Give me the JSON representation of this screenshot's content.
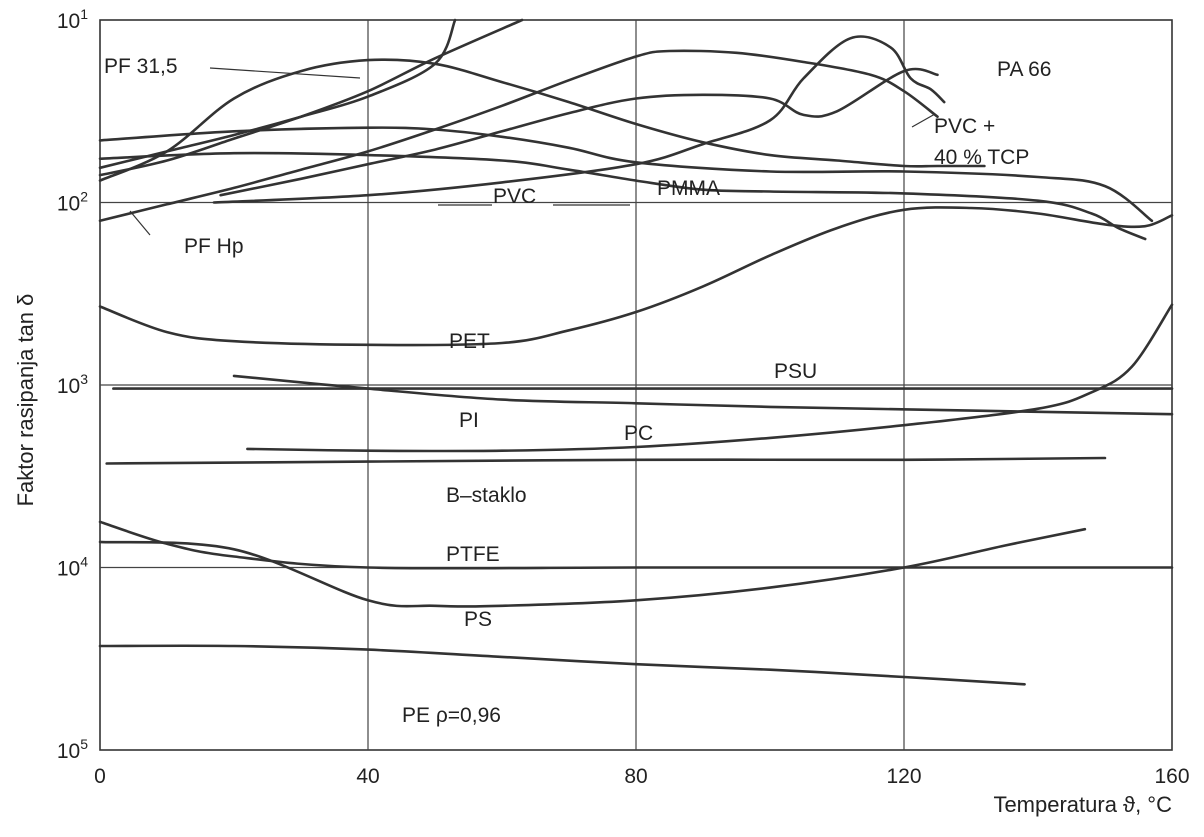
{
  "chart_data": {
    "type": "line",
    "ylabel": "Faktor rasipanja tan δ",
    "xlabel": "Temperatura ϑ, °C",
    "xlim": [
      0,
      160
    ],
    "x_ticks": [
      0,
      40,
      80,
      120,
      160
    ],
    "y_scale": "log",
    "ylim_exponent": [
      -5,
      -1
    ],
    "y_ticks": [
      {
        "base": "10",
        "exp": "1"
      },
      {
        "base": "10",
        "exp": "2"
      },
      {
        "base": "10",
        "exp": "3"
      },
      {
        "base": "10",
        "exp": "4"
      },
      {
        "base": "10",
        "exp": "5"
      }
    ],
    "grid": true,
    "series": [
      {
        "name": "PA 66",
        "points": [
          [
            0,
            -1.88
          ],
          [
            10,
            -1.72
          ],
          [
            20,
            -1.43
          ],
          [
            30,
            -1.28
          ],
          [
            40,
            -1.22
          ],
          [
            50,
            -1.24
          ],
          [
            60,
            -1.34
          ],
          [
            70,
            -1.45
          ],
          [
            80,
            -1.57
          ],
          [
            90,
            -1.67
          ],
          [
            100,
            -1.74
          ],
          [
            110,
            -1.77
          ],
          [
            120,
            -1.8
          ],
          [
            125,
            -1.8
          ],
          [
            132,
            -1.8
          ]
        ]
      },
      {
        "name": "PF 31,5",
        "points": [
          [
            0,
            -1.81
          ],
          [
            10,
            -1.72
          ],
          [
            20,
            -1.63
          ],
          [
            30,
            -1.53
          ],
          [
            40,
            -1.42
          ],
          [
            50,
            -1.24
          ],
          [
            53,
            -1.0
          ]
        ]
      },
      {
        "name": "",
        "points": [
          [
            0,
            -1.85
          ],
          [
            10,
            -1.77
          ],
          [
            20,
            -1.65
          ],
          [
            30,
            -1.53
          ],
          [
            40,
            -1.39
          ],
          [
            50,
            -1.21
          ],
          [
            63,
            -1.0
          ]
        ]
      },
      {
        "name": "",
        "points": [
          [
            0,
            -1.66
          ],
          [
            20,
            -1.61
          ],
          [
            40,
            -1.59
          ],
          [
            50,
            -1.6
          ],
          [
            60,
            -1.64
          ],
          [
            70,
            -1.7
          ],
          [
            80,
            -1.78
          ],
          [
            100,
            -1.83
          ],
          [
            120,
            -1.83
          ],
          [
            140,
            -1.86
          ],
          [
            150,
            -1.91
          ],
          [
            157,
            -2.1
          ]
        ]
      },
      {
        "name": "PF Hp",
        "points": [
          [
            0,
            -2.1
          ],
          [
            10,
            -2.01
          ],
          [
            20,
            -1.92
          ],
          [
            30,
            -1.82
          ],
          [
            40,
            -1.72
          ],
          [
            50,
            -1.6
          ],
          [
            60,
            -1.47
          ],
          [
            70,
            -1.33
          ],
          [
            80,
            -1.2
          ],
          [
            85,
            -1.17
          ],
          [
            95,
            -1.18
          ],
          [
            105,
            -1.23
          ],
          [
            115,
            -1.3
          ],
          [
            120,
            -1.39
          ],
          [
            125,
            -1.53
          ]
        ]
      },
      {
        "name": "PVC + 40 % TCP",
        "points": [
          [
            18,
            -1.96
          ],
          [
            30,
            -1.87
          ],
          [
            40,
            -1.79
          ],
          [
            50,
            -1.71
          ],
          [
            60,
            -1.61
          ],
          [
            70,
            -1.51
          ],
          [
            80,
            -1.43
          ],
          [
            90,
            -1.41
          ],
          [
            100,
            -1.43
          ],
          [
            105,
            -1.52
          ],
          [
            110,
            -1.5
          ],
          [
            120,
            -1.28
          ],
          [
            125,
            -1.3
          ]
        ]
      },
      {
        "name": "PVC",
        "points": [
          [
            17,
            -2.0
          ],
          [
            40,
            -1.96
          ],
          [
            60,
            -1.89
          ],
          [
            80,
            -1.79
          ],
          [
            90,
            -1.68
          ],
          [
            100,
            -1.55
          ],
          [
            105,
            -1.32
          ],
          [
            112,
            -1.1
          ],
          [
            118,
            -1.15
          ],
          [
            121,
            -1.32
          ],
          [
            124,
            -1.38
          ],
          [
            126,
            -1.45
          ]
        ]
      },
      {
        "name": "PMMA",
        "points": [
          [
            0,
            -1.76
          ],
          [
            20,
            -1.73
          ],
          [
            40,
            -1.74
          ],
          [
            60,
            -1.77
          ],
          [
            70,
            -1.82
          ],
          [
            80,
            -1.88
          ],
          [
            90,
            -1.93
          ],
          [
            100,
            -1.94
          ],
          [
            120,
            -1.95
          ],
          [
            140,
            -1.99
          ],
          [
            148,
            -2.06
          ],
          [
            152,
            -2.14
          ],
          [
            156,
            -2.2
          ]
        ]
      },
      {
        "name": "PET",
        "points": [
          [
            0,
            -2.57
          ],
          [
            10,
            -2.71
          ],
          [
            20,
            -2.76
          ],
          [
            40,
            -2.78
          ],
          [
            60,
            -2.77
          ],
          [
            70,
            -2.7
          ],
          [
            80,
            -2.6
          ],
          [
            90,
            -2.46
          ],
          [
            100,
            -2.29
          ],
          [
            110,
            -2.14
          ],
          [
            120,
            -2.04
          ],
          [
            130,
            -2.03
          ],
          [
            140,
            -2.06
          ],
          [
            150,
            -2.12
          ],
          [
            156,
            -2.13
          ],
          [
            160,
            -2.07
          ]
        ]
      },
      {
        "name": "PSU",
        "points": [
          [
            2,
            -3.02
          ],
          [
            160,
            -3.02
          ]
        ]
      },
      {
        "name": "PI",
        "points": [
          [
            20,
            -2.95
          ],
          [
            40,
            -3.02
          ],
          [
            60,
            -3.08
          ],
          [
            80,
            -3.1
          ],
          [
            100,
            -3.12
          ],
          [
            130,
            -3.14
          ],
          [
            160,
            -3.16
          ]
        ]
      },
      {
        "name": "PC",
        "points": [
          [
            22,
            -3.35
          ],
          [
            40,
            -3.36
          ],
          [
            60,
            -3.36
          ],
          [
            80,
            -3.34
          ],
          [
            100,
            -3.29
          ],
          [
            120,
            -3.22
          ],
          [
            140,
            -3.13
          ],
          [
            148,
            -3.04
          ],
          [
            154,
            -2.9
          ],
          [
            160,
            -2.56
          ]
        ]
      },
      {
        "name": "B–staklo",
        "points": [
          [
            1,
            -3.43
          ],
          [
            40,
            -3.42
          ],
          [
            80,
            -3.41
          ],
          [
            120,
            -3.41
          ],
          [
            150,
            -3.4
          ]
        ]
      },
      {
        "name": "PTFE",
        "points": [
          [
            0,
            -3.75
          ],
          [
            10,
            -3.87
          ],
          [
            20,
            -3.94
          ],
          [
            40,
            -4.0
          ],
          [
            80,
            -4.0
          ],
          [
            120,
            -4.0
          ],
          [
            160,
            -4.0
          ]
        ]
      },
      {
        "name": "PS",
        "points": [
          [
            0,
            -3.86
          ],
          [
            20,
            -3.9
          ],
          [
            40,
            -4.18
          ],
          [
            50,
            -4.21
          ],
          [
            60,
            -4.21
          ],
          [
            80,
            -4.18
          ],
          [
            100,
            -4.11
          ],
          [
            120,
            -4.0
          ],
          [
            135,
            -3.88
          ],
          [
            147,
            -3.79
          ]
        ]
      },
      {
        "name": "PE ρ=0,96",
        "points": [
          [
            0,
            -4.43
          ],
          [
            20,
            -4.43
          ],
          [
            40,
            -4.45
          ],
          [
            60,
            -4.49
          ],
          [
            80,
            -4.53
          ],
          [
            100,
            -4.56
          ],
          [
            120,
            -4.6
          ],
          [
            138,
            -4.64
          ]
        ]
      }
    ]
  }
}
